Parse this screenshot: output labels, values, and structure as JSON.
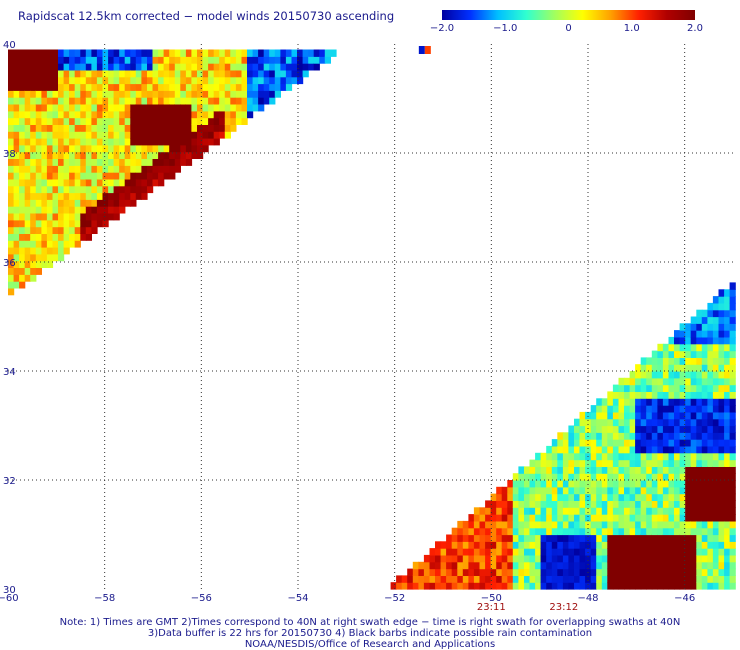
{
  "title": "Rapidscat 12.5km corrected − model winds 20150730 ascending",
  "colorbar": {
    "ticks": [
      {
        "label": "−2.0",
        "value": -2.0
      },
      {
        "label": "−1.0",
        "value": -1.0
      },
      {
        "label": "0",
        "value": 0.0
      },
      {
        "label": "1.0",
        "value": 1.0
      },
      {
        "label": "2.0",
        "value": 2.0
      }
    ],
    "range": [
      -2.0,
      2.0
    ],
    "stops": [
      "#0000a0",
      "#0030ff",
      "#00c0ff",
      "#30ffd0",
      "#a0ff60",
      "#ffff00",
      "#ffa000",
      "#ff2000",
      "#b00000",
      "#800000"
    ]
  },
  "map": {
    "lon_range": [
      -60,
      -45
    ],
    "lat_range": [
      30,
      40
    ],
    "lon_ticks": [
      {
        "label": "−60",
        "value": -60
      },
      {
        "label": "−58",
        "value": -58
      },
      {
        "label": "−56",
        "value": -56
      },
      {
        "label": "−54",
        "value": -54
      },
      {
        "label": "−52",
        "value": -52
      },
      {
        "label": "−50",
        "value": -50
      },
      {
        "label": "−48",
        "value": -48
      },
      {
        "label": "−46",
        "value": -46
      }
    ],
    "lat_ticks": [
      {
        "label": "30",
        "value": 30
      },
      {
        "label": "32",
        "value": 32
      },
      {
        "label": "34",
        "value": 34
      },
      {
        "label": "36",
        "value": 36
      },
      {
        "label": "38",
        "value": 38
      },
      {
        "label": "40",
        "value": 40
      }
    ],
    "swath_times": [
      {
        "label": "23:11",
        "lon": -50
      },
      {
        "label": "23:12",
        "lon": -48.5
      }
    ],
    "swath_time_color": "#a01010"
  },
  "notes": {
    "line1": "Note: 1) Times are GMT 2)Times correspond to 40N at right swath edge − time is right swath for overlapping swaths at 40N",
    "line2": "3)Data buffer is 22 hrs for 20150730 4) Black barbs indicate possible rain contamination",
    "line3": "NOAA/NESDIS/Office of Research and Applications"
  }
}
